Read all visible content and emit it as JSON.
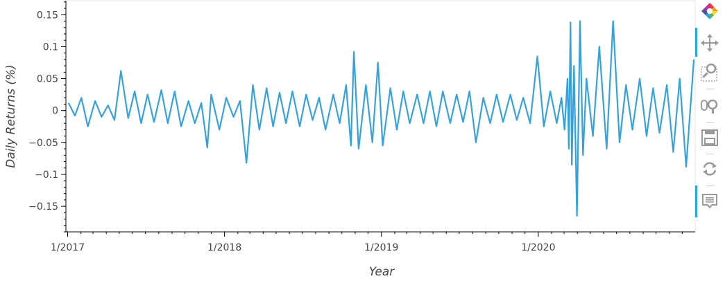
{
  "chart_data": {
    "type": "line",
    "title": "",
    "xlabel": "Year",
    "ylabel": "Daily Returns (%)",
    "xlim": [
      "2016-12-28",
      "2020-12-31"
    ],
    "ylim": [
      -0.19,
      0.172
    ],
    "x_ticks": [
      "1/2017",
      "1/2018",
      "1/2019",
      "1/2020"
    ],
    "y_ticks": [
      {
        "value": 0.15,
        "label": "0.15"
      },
      {
        "value": 0.1,
        "label": "0.1"
      },
      {
        "value": 0.05,
        "label": "0.05"
      },
      {
        "value": 0,
        "label": "0"
      },
      {
        "value": -0.05,
        "label": "−0.05"
      },
      {
        "value": -0.1,
        "label": "−0.1"
      },
      {
        "value": -0.15,
        "label": "−0.15"
      }
    ],
    "grid": false,
    "legend": "none",
    "series_color": "#36a2db",
    "series": [
      {
        "x": [
          "2017-01-03",
          "2017-01-18",
          "2017-02-02",
          "2017-02-17",
          "2017-03-06",
          "2017-03-21",
          "2017-04-05",
          "2017-04-20",
          "2017-05-05",
          "2017-05-22",
          "2017-06-06",
          "2017-06-21",
          "2017-07-06",
          "2017-07-21",
          "2017-08-07",
          "2017-08-22",
          "2017-09-07",
          "2017-09-22",
          "2017-10-09",
          "2017-10-24",
          "2017-11-08",
          "2017-11-22",
          "2017-12-01",
          "2017-12-20",
          "2018-01-05",
          "2018-01-22",
          "2018-02-06",
          "2018-02-21",
          "2018-03-08",
          "2018-03-23",
          "2018-04-09",
          "2018-04-24",
          "2018-05-09",
          "2018-05-24",
          "2018-06-08",
          "2018-06-25",
          "2018-07-10",
          "2018-07-25",
          "2018-08-09",
          "2018-08-24",
          "2018-09-11",
          "2018-09-26",
          "2018-10-11",
          "2018-10-22",
          "2018-10-29",
          "2018-11-09",
          "2018-11-26",
          "2018-12-11",
          "2018-12-24",
          "2019-01-04",
          "2019-01-22",
          "2019-02-06",
          "2019-02-21",
          "2019-03-08",
          "2019-03-25",
          "2019-04-09",
          "2019-04-24",
          "2019-05-09",
          "2019-05-24",
          "2019-06-10",
          "2019-06-25",
          "2019-07-10",
          "2019-07-25",
          "2019-08-09",
          "2019-08-26",
          "2019-09-11",
          "2019-09-26",
          "2019-10-11",
          "2019-10-28",
          "2019-11-12",
          "2019-11-27",
          "2019-12-13",
          "2019-12-30",
          "2020-01-14",
          "2020-01-29",
          "2020-02-13",
          "2020-02-24",
          "2020-03-02",
          "2020-03-09",
          "2020-03-12",
          "2020-03-16",
          "2020-03-19",
          "2020-03-24",
          "2020-03-31",
          "2020-04-07",
          "2020-04-14",
          "2020-04-22",
          "2020-05-07",
          "2020-05-22",
          "2020-06-08",
          "2020-06-23",
          "2020-07-08",
          "2020-07-23",
          "2020-08-07",
          "2020-08-24",
          "2020-09-09",
          "2020-09-24",
          "2020-10-09",
          "2020-10-26",
          "2020-11-10",
          "2020-11-25",
          "2020-12-10",
          "2020-12-28"
        ],
        "y": [
          0.012,
          -0.008,
          0.02,
          -0.025,
          0.015,
          -0.01,
          0.008,
          -0.015,
          0.062,
          -0.012,
          0.03,
          -0.02,
          0.025,
          -0.018,
          0.032,
          -0.02,
          0.03,
          -0.025,
          0.015,
          -0.02,
          0.012,
          -0.058,
          0.025,
          -0.03,
          0.02,
          -0.01,
          0.015,
          -0.082,
          0.04,
          -0.03,
          0.035,
          -0.025,
          0.028,
          -0.02,
          0.03,
          -0.025,
          0.025,
          -0.015,
          0.02,
          -0.03,
          0.025,
          -0.02,
          0.04,
          -0.055,
          0.092,
          -0.06,
          0.04,
          -0.05,
          0.075,
          -0.055,
          0.035,
          -0.03,
          0.03,
          -0.02,
          0.025,
          -0.02,
          0.03,
          -0.025,
          0.03,
          -0.02,
          0.025,
          -0.018,
          0.03,
          -0.05,
          0.02,
          -0.02,
          0.025,
          -0.018,
          0.025,
          -0.015,
          0.02,
          -0.02,
          0.085,
          -0.025,
          0.03,
          -0.02,
          0.02,
          -0.03,
          0.05,
          -0.06,
          0.138,
          -0.085,
          0.07,
          -0.165,
          0.14,
          -0.07,
          0.05,
          -0.04,
          0.1,
          -0.06,
          0.14,
          -0.05,
          0.04,
          -0.03,
          0.05,
          -0.04,
          0.035,
          -0.035,
          0.04,
          -0.065,
          0.05,
          -0.088,
          0.08
        ]
      }
    ]
  },
  "toolbar": {
    "tools": [
      {
        "name": "bokeh-logo",
        "icon": "bokeh-logo-icon",
        "active": false
      },
      {
        "name": "pan",
        "icon": "move-arrows-icon",
        "active": true
      },
      {
        "name": "box-zoom",
        "icon": "box-zoom-icon",
        "active": false
      },
      {
        "name": "wheel-zoom",
        "icon": "wheel-zoom-icon",
        "active": false
      },
      {
        "name": "save",
        "icon": "save-disk-icon",
        "active": false
      },
      {
        "name": "reset",
        "icon": "reset-icon",
        "active": false
      },
      {
        "name": "hover",
        "icon": "hover-tooltip-icon",
        "active": true
      }
    ]
  }
}
